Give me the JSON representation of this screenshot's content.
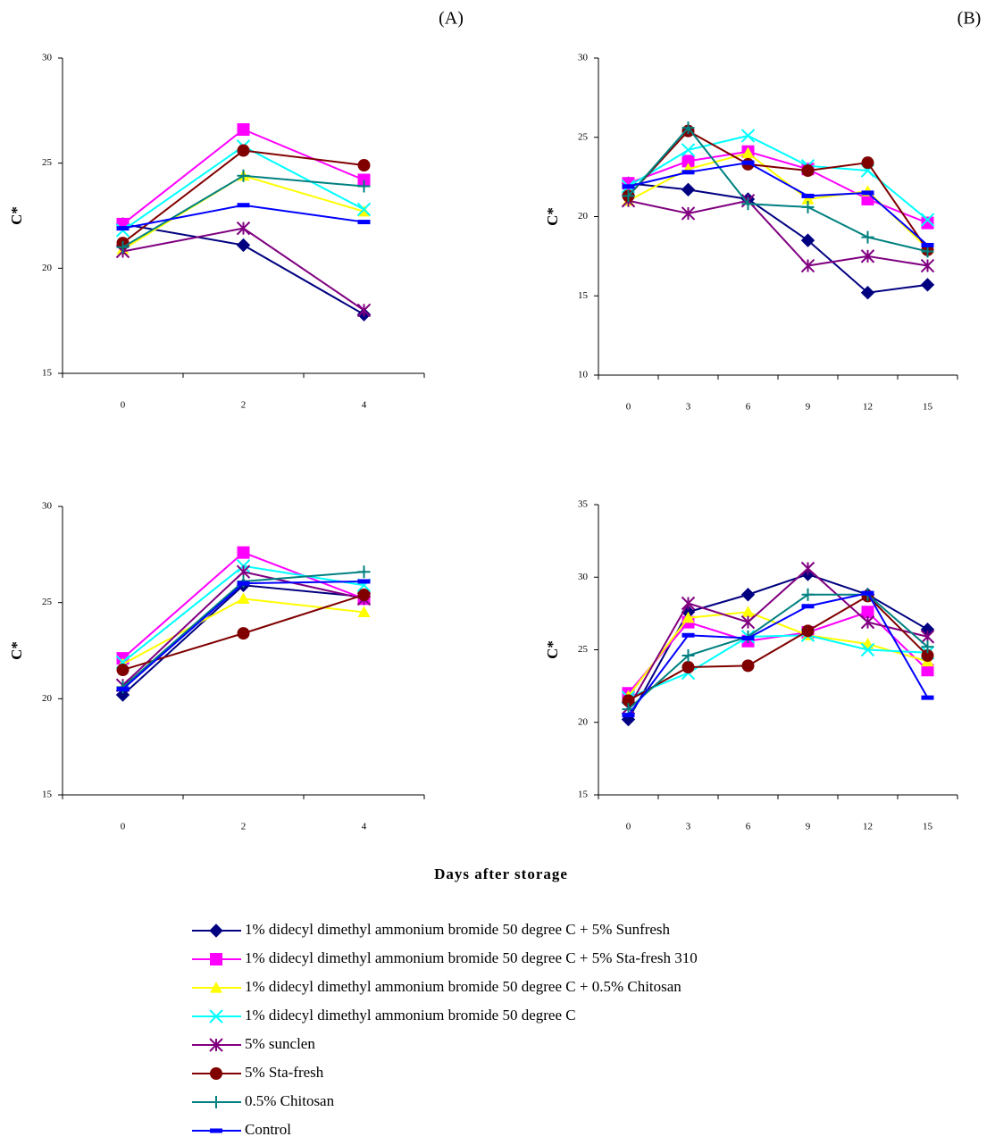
{
  "chart_data": [
    {
      "type": "line",
      "title": "(A)",
      "ylabel": "C*",
      "categories": [
        "0",
        "2",
        "4"
      ],
      "ylim": [
        15,
        30
      ],
      "yticks": [
        15,
        20,
        25,
        30
      ],
      "series": [
        {
          "values": [
            22.1,
            21.1,
            17.8
          ]
        },
        {
          "values": [
            22.1,
            26.6,
            24.2
          ]
        },
        {
          "values": [
            20.9,
            24.4,
            22.7
          ]
        },
        {
          "values": [
            21.8,
            25.8,
            22.8
          ]
        },
        {
          "values": [
            20.8,
            21.9,
            18.0
          ]
        },
        {
          "values": [
            21.2,
            25.6,
            24.9
          ]
        },
        {
          "values": [
            21.0,
            24.4,
            23.9
          ]
        },
        {
          "values": [
            21.9,
            23.0,
            22.2
          ]
        }
      ]
    },
    {
      "type": "line",
      "title": "(B)",
      "ylabel": "C*",
      "categories": [
        "0",
        "3",
        "6",
        "9",
        "12",
        "15"
      ],
      "ylim": [
        10,
        30
      ],
      "yticks": [
        10,
        15,
        20,
        25,
        30
      ],
      "series": [
        {
          "values": [
            22.1,
            21.7,
            21.1,
            18.5,
            15.2,
            15.7
          ]
        },
        {
          "values": [
            22.1,
            23.5,
            24.1,
            23.0,
            21.1,
            19.6
          ]
        },
        {
          "values": [
            21.0,
            23.0,
            24.0,
            21.1,
            21.6,
            18.0
          ]
        },
        {
          "values": [
            21.9,
            24.2,
            25.1,
            23.2,
            22.9,
            19.8
          ]
        },
        {
          "values": [
            21.0,
            20.2,
            21.0,
            16.9,
            17.5,
            16.9
          ]
        },
        {
          "values": [
            21.3,
            25.4,
            23.3,
            22.9,
            23.4,
            17.9
          ]
        },
        {
          "values": [
            21.3,
            25.6,
            20.8,
            20.6,
            18.7,
            17.8
          ]
        },
        {
          "values": [
            21.9,
            22.8,
            23.4,
            21.3,
            21.5,
            18.2
          ]
        }
      ]
    },
    {
      "type": "line",
      "ylabel": "C*",
      "categories": [
        "0",
        "2",
        "4"
      ],
      "ylim": [
        15,
        30
      ],
      "yticks": [
        15,
        20,
        25,
        30
      ],
      "series": [
        {
          "values": [
            20.2,
            25.9,
            25.3
          ]
        },
        {
          "values": [
            22.1,
            27.6,
            25.2
          ]
        },
        {
          "values": [
            21.8,
            25.2,
            24.5
          ]
        },
        {
          "values": [
            21.9,
            26.9,
            25.9
          ]
        },
        {
          "values": [
            20.7,
            26.6,
            25.2
          ]
        },
        {
          "values": [
            21.5,
            23.4,
            25.4
          ]
        },
        {
          "values": [
            20.6,
            26.1,
            26.6
          ]
        },
        {
          "values": [
            20.5,
            26.0,
            26.1
          ]
        }
      ]
    },
    {
      "type": "line",
      "ylabel": "C*",
      "categories": [
        "0",
        "3",
        "6",
        "9",
        "12",
        "15"
      ],
      "ylim": [
        15,
        35
      ],
      "yticks": [
        15,
        20,
        25,
        30,
        35
      ],
      "series": [
        {
          "values": [
            20.2,
            27.6,
            28.8,
            30.2,
            28.8,
            26.4
          ]
        },
        {
          "values": [
            22.0,
            26.9,
            25.6,
            26.2,
            27.6,
            23.6
          ]
        },
        {
          "values": [
            21.8,
            27.2,
            27.6,
            26.0,
            25.4,
            24.2
          ]
        },
        {
          "values": [
            21.7,
            23.4,
            25.9,
            26.0,
            25.0,
            24.8
          ]
        },
        {
          "values": [
            21.0,
            28.2,
            26.9,
            30.6,
            26.9,
            25.9
          ]
        },
        {
          "values": [
            21.5,
            23.8,
            23.9,
            26.3,
            28.7,
            24.6
          ]
        },
        {
          "values": [
            20.9,
            24.6,
            25.9,
            28.8,
            28.8,
            25.2
          ]
        },
        {
          "values": [
            20.5,
            26.0,
            25.8,
            28.0,
            28.9,
            21.7
          ]
        }
      ]
    }
  ],
  "xlabel": "Days after storage",
  "legend": [
    {
      "name": "1% didecyl dimethyl ammonium bromide 50 degree C + 5% Sunfresh",
      "color": "#000080",
      "marker": "diamond"
    },
    {
      "name": "1% didecyl dimethyl ammonium bromide 50 degree C + 5% Sta-fresh 310",
      "color": "#ff00ff",
      "marker": "square"
    },
    {
      "name": "1% didecyl dimethyl ammonium bromide 50 degree C + 0.5% Chitosan",
      "color": "#ffff00",
      "marker": "triangle"
    },
    {
      "name": "1% didecyl dimethyl ammonium bromide 50 degree C",
      "color": "#00ffff",
      "marker": "cross"
    },
    {
      "name": "5% sunclen",
      "color": "#800080",
      "marker": "star"
    },
    {
      "name": "5% Sta-fresh",
      "color": "#800000",
      "marker": "circle"
    },
    {
      "name": "0.5% Chitosan",
      "color": "#008080",
      "marker": "plus"
    },
    {
      "name": "Control",
      "color": "#0000ff",
      "marker": "dash"
    }
  ]
}
